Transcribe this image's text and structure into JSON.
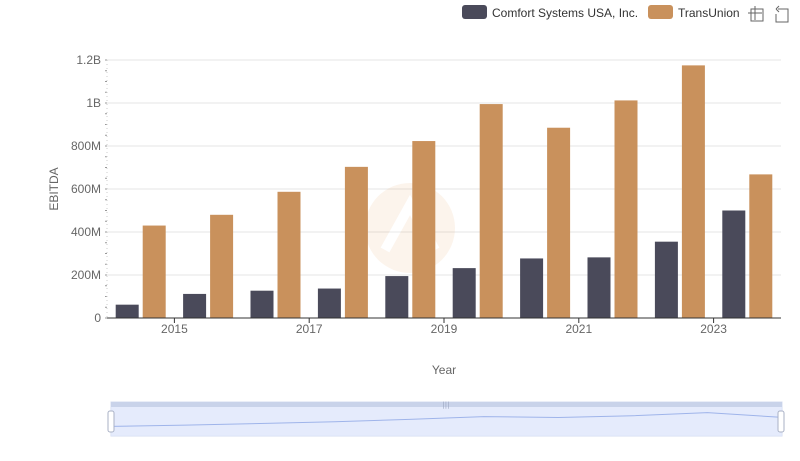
{
  "chart_data": {
    "type": "bar",
    "xlabel": "Year",
    "ylabel": "EBITDA",
    "categories": [
      2014,
      2015,
      2016,
      2017,
      2018,
      2019,
      2020,
      2021,
      2022,
      2023
    ],
    "x_tick_labels": [
      "2015",
      "2017",
      "2019",
      "2021",
      "2023"
    ],
    "y_tick_labels": [
      "0",
      "200M",
      "400M",
      "600M",
      "800M",
      "1B",
      "1.2B"
    ],
    "ylim": [
      0,
      1200000000
    ],
    "grid": true,
    "legend_position": "top-right",
    "series": [
      {
        "name": "Comfort Systems USA, Inc.",
        "color": "#4a4a5a",
        "values": [
          62000000,
          112000000,
          127000000,
          137000000,
          195000000,
          232000000,
          277000000,
          282000000,
          355000000,
          500000000
        ]
      },
      {
        "name": "TransUnion",
        "color": "#c9915c",
        "values": [
          430000000,
          480000000,
          587000000,
          703000000,
          823000000,
          995000000,
          885000000,
          1012000000,
          1175000000,
          668000000
        ]
      }
    ]
  },
  "toolbar": {
    "zoom_icon": "zoom-icon",
    "reset_icon": "reset-icon"
  },
  "colors": {
    "grid": "#e6e6e6",
    "axis": "#333333",
    "slider_fill": "#dfe6fb",
    "slider_border": "#c9d3ea"
  }
}
